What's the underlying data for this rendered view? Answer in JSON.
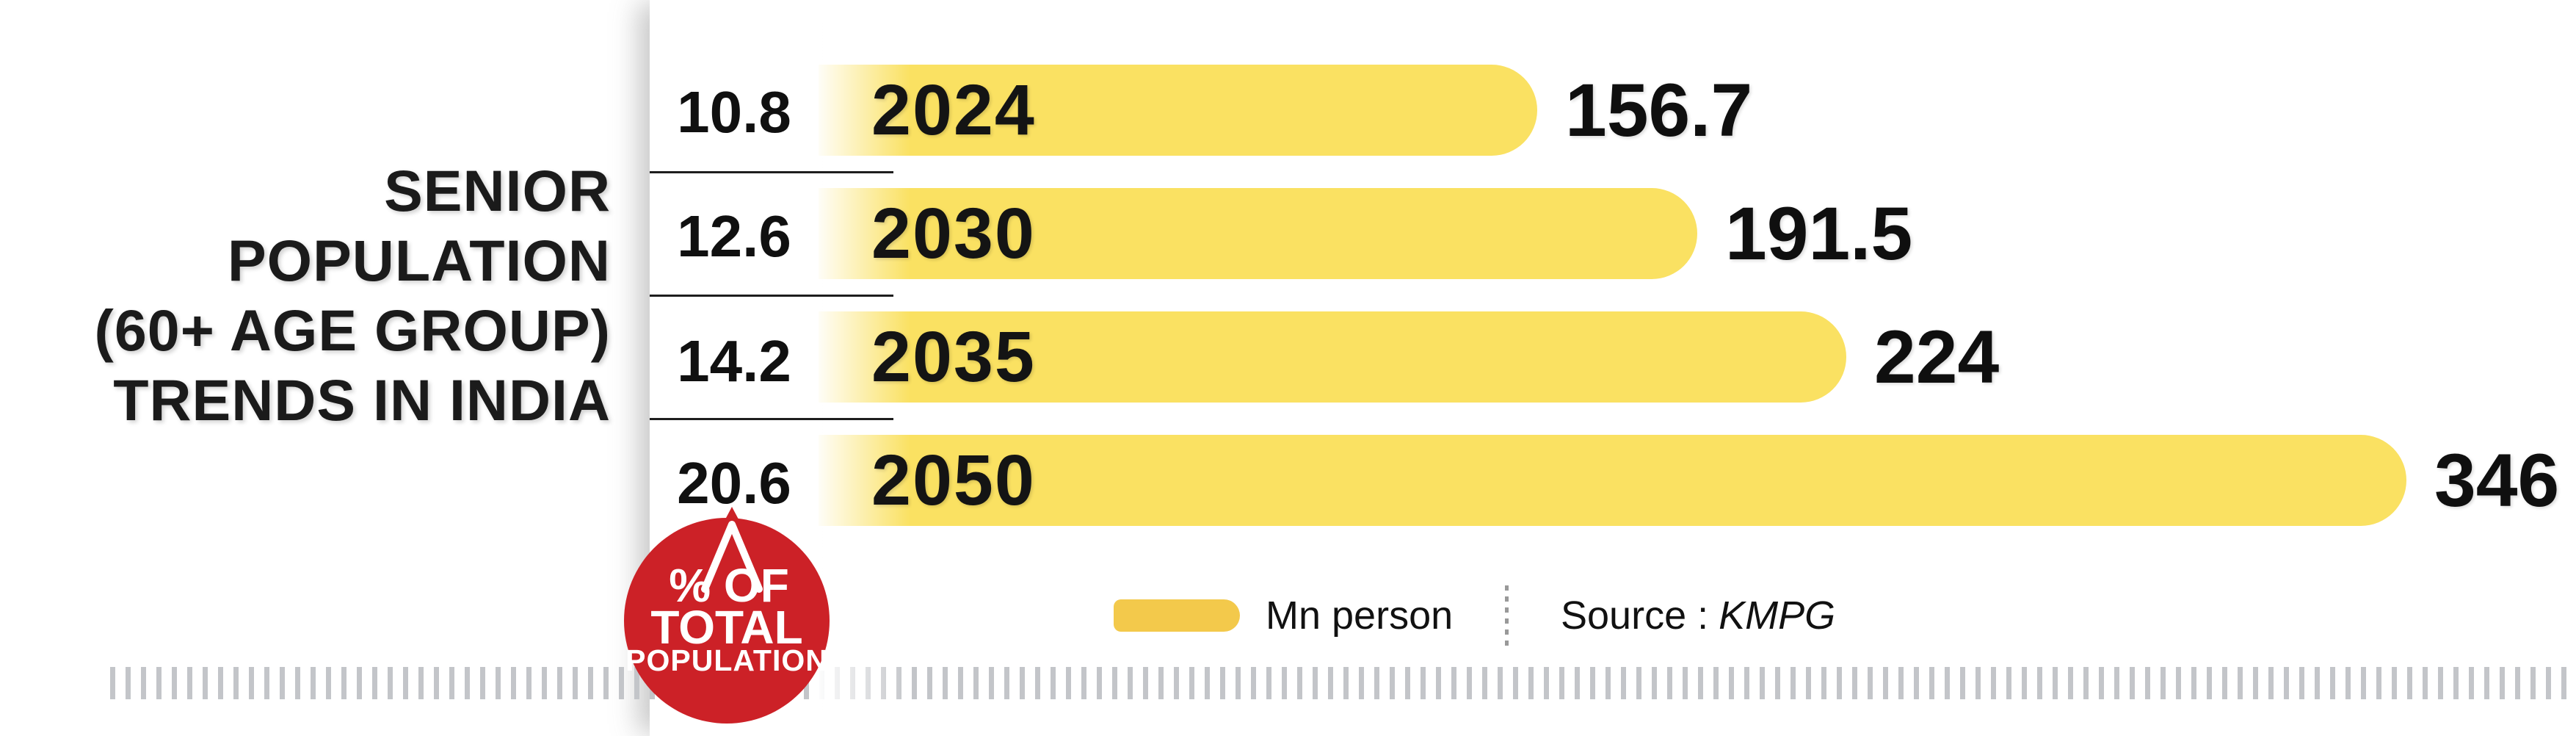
{
  "chart_data": {
    "type": "bar",
    "orientation": "horizontal",
    "title": "SENIOR POPULATION (60+ AGE GROUP) TRENDS IN INDIA",
    "categories": [
      "2024",
      "2030",
      "2035",
      "2050"
    ],
    "series": [
      {
        "name": "Senior population (Mn person)",
        "values": [
          156.7,
          191.5,
          224,
          346
        ]
      },
      {
        "name": "% of total population",
        "values": [
          10.8,
          12.6,
          14.2,
          20.6
        ]
      }
    ],
    "unit": "Mn person",
    "legend": "Mn person",
    "legend_position": "bottom",
    "source": "Source : KMPG",
    "grid": false,
    "bar_color": "#FAE162",
    "legend_swatch_color": "#F3C94B",
    "badge_color": "#CC2127",
    "tick_strip_color": "#c3c5c9"
  },
  "title": {
    "lines": [
      "SENIOR",
      "POPULATION",
      "(60+ AGE GROUP)",
      "TRENDS IN INDIA"
    ]
  },
  "rows": [
    {
      "year": "2024",
      "value": "156.7",
      "percent": "10.8"
    },
    {
      "year": "2030",
      "value": "191.5",
      "percent": "12.6"
    },
    {
      "year": "2035",
      "value": "224",
      "percent": "14.2"
    },
    {
      "year": "2050",
      "value": "346",
      "percent": "20.6"
    }
  ],
  "badge": {
    "line1": "% OF",
    "line2": "TOTAL",
    "line3": "POPULATION"
  },
  "legend": {
    "label": "Mn person"
  },
  "source": {
    "label": "Source :",
    "value": "KMPG"
  }
}
